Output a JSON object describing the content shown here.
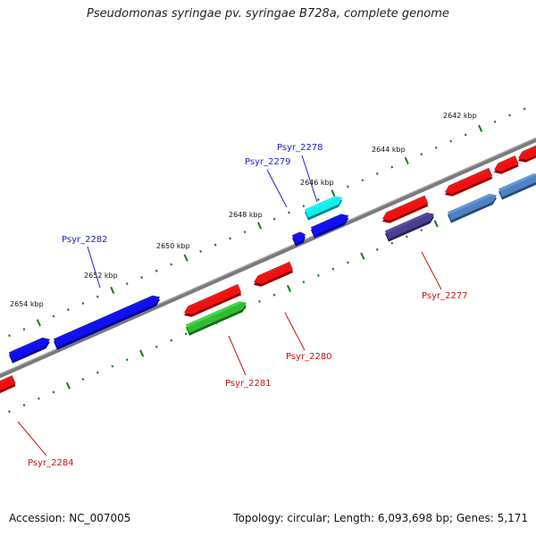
{
  "header": {
    "title": "Pseudomonas syringae pv. syringae B728a, complete genome"
  },
  "footer": {
    "accession": "Accession: NC_007005",
    "summary": "Topology: circular; Length: 6,093,698 bp; Genes: 5,171"
  },
  "colors": {
    "backbone": "#7a7a7a",
    "tick": "#1a7a1a",
    "forward_label": "#1f1fc8",
    "reverse_label": "#cc1111",
    "blue": "#1010ee",
    "red": "#ee1111",
    "cyan": "#11eeee",
    "green": "#33bb33",
    "navy": "#4a3f8c",
    "steel": "#4f82c0"
  },
  "scale_labels": [
    "2642 kbp",
    "2644 kbp",
    "2646 kbp",
    "2648 kbp",
    "2650 kbp",
    "2652 kbp",
    "2654 kbp"
  ],
  "gene_labels": {
    "forward": [
      "Psyr_2278",
      "Psyr_2279",
      "Psyr_2282"
    ],
    "reverse": [
      "Psyr_2277",
      "Psyr_2280",
      "Psyr_2281",
      "Psyr_2284"
    ]
  },
  "features": [
    {
      "name": "forward-gene-1",
      "color": "blue"
    },
    {
      "name": "forward-gene-2",
      "color": "blue"
    },
    {
      "name": "forward-gene-psyr-2279",
      "color": "blue"
    },
    {
      "name": "forward-gene-small",
      "color": "blue"
    },
    {
      "name": "forward-gene-psyr-2278",
      "color": "cyan"
    },
    {
      "name": "reverse-gene-psyr-2281-upper",
      "color": "red"
    },
    {
      "name": "reverse-gene-psyr-2281",
      "color": "green"
    },
    {
      "name": "reverse-gene-psyr-2280",
      "color": "red"
    },
    {
      "name": "reverse-gene-a",
      "color": "red"
    },
    {
      "name": "reverse-gene-psyr-2277",
      "color": "navy"
    },
    {
      "name": "reverse-gene-b",
      "color": "red"
    },
    {
      "name": "reverse-gene-c",
      "color": "red"
    },
    {
      "name": "reverse-gene-d",
      "color": "red"
    },
    {
      "name": "reverse-gene-e",
      "color": "steel"
    },
    {
      "name": "reverse-gene-f",
      "color": "steel"
    },
    {
      "name": "reverse-gene-psyr-2284",
      "color": "red"
    }
  ]
}
